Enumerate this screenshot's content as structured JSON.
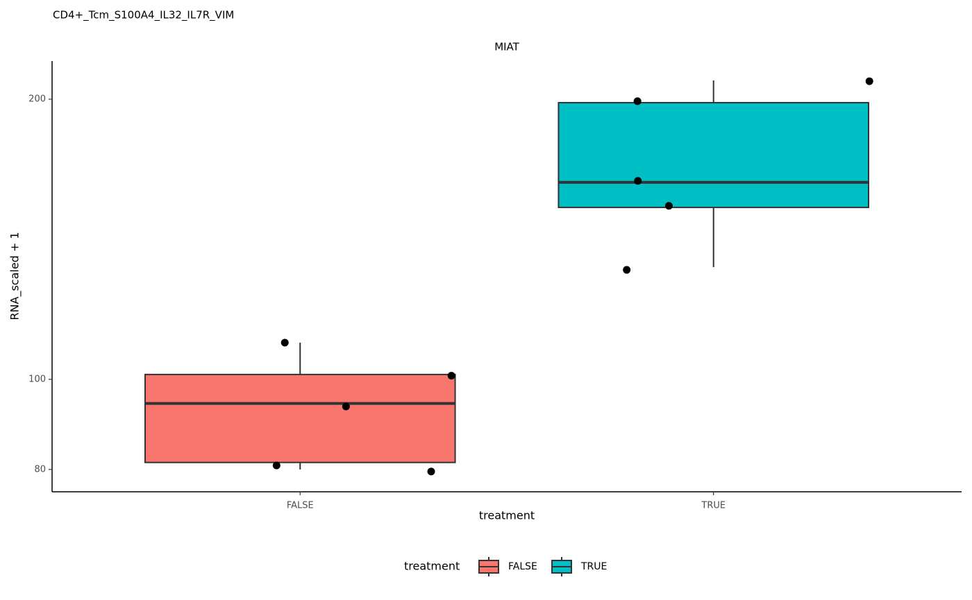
{
  "chart_data": {
    "type": "boxplot",
    "title": "CD4+_Tcm_S100A4_IL32_IL7R_VIM",
    "facet_label": "MIAT",
    "x_label": "treatment",
    "y_label": "RNA_scaled + 1",
    "y_scale": "log",
    "ylim": [
      75.7,
      219.8
    ],
    "yticks": [
      80,
      100,
      200
    ],
    "categories": [
      "FALSE",
      "TRUE"
    ],
    "legend_title": "treatment",
    "legend_position": "bottom",
    "series": [
      {
        "name": "FALSE",
        "color": "#f8766d",
        "whisker_low": 80,
        "q1": 81.4,
        "median": 94.2,
        "q3": 101.2,
        "whisker_high": 109.5,
        "points": [
          109.5,
          93.5,
          100.9,
          80.8,
          79.6
        ]
      },
      {
        "name": "TRUE",
        "color": "#00bfc4",
        "whisker_low": 132.0,
        "q1": 153.0,
        "median": 162.8,
        "q3": 198.3,
        "whisker_high": 209.5,
        "points": [
          209.1,
          199.0,
          163.4,
          153.6,
          131.1
        ]
      }
    ]
  }
}
